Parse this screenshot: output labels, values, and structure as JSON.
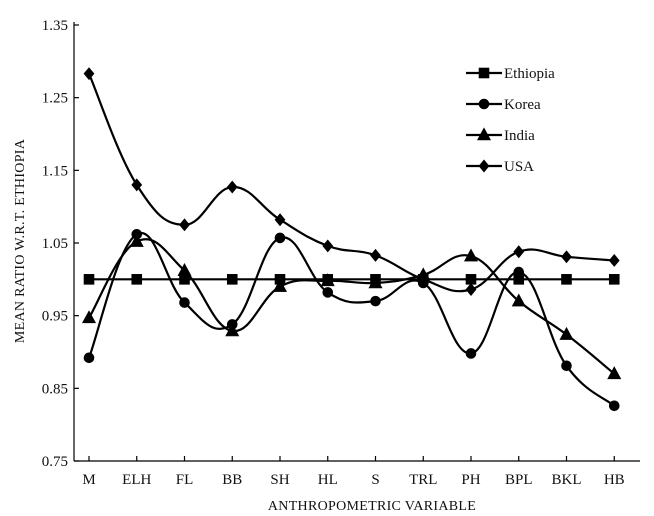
{
  "chart_data": {
    "type": "line",
    "xlabel": "ANTHROPOMETRIC VARIABLE",
    "ylabel": "MEAN RATIO W.R.T. ETHIOPIA",
    "ylim": [
      0.75,
      1.35
    ],
    "yticks": [
      "0.75",
      "0.85",
      "0.95",
      "1.05",
      "1.15",
      "1.25",
      "1.35"
    ],
    "grid": false,
    "legend_position": "top-right",
    "categories": [
      "M",
      "ELH",
      "FL",
      "BB",
      "SH",
      "HL",
      "S",
      "TRL",
      "PH",
      "BPL",
      "BKL",
      "HB"
    ],
    "series": [
      {
        "name": "Ethiopia",
        "marker": "square",
        "color": "#000000",
        "values": [
          1.0,
          1.0,
          1.0,
          1.0,
          1.0,
          1.0,
          1.0,
          1.0,
          1.0,
          1.0,
          1.0,
          1.0
        ]
      },
      {
        "name": "Korea",
        "marker": "circle",
        "color": "#000000",
        "values": [
          0.892,
          1.062,
          0.968,
          0.938,
          1.057,
          0.982,
          0.97,
          0.995,
          0.898,
          1.01,
          0.881,
          0.826
        ]
      },
      {
        "name": "India",
        "marker": "triangle",
        "color": "#000000",
        "values": [
          0.947,
          1.052,
          1.012,
          0.929,
          0.99,
          0.998,
          0.995,
          1.006,
          1.032,
          0.97,
          0.924,
          0.87
        ]
      },
      {
        "name": "USA",
        "marker": "diamond",
        "color": "#000000",
        "values": [
          1.283,
          1.13,
          1.075,
          1.127,
          1.082,
          1.046,
          1.033,
          1.0,
          0.986,
          1.038,
          1.031,
          1.026
        ]
      }
    ]
  }
}
